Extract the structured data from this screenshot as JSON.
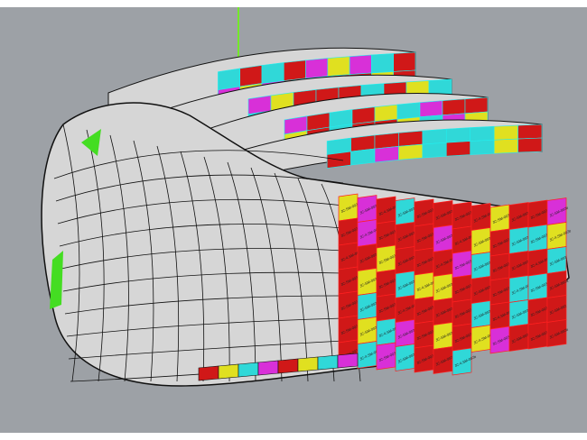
{
  "viewport": {
    "background": "#9da1a6",
    "surface_color": "#d6d6d6",
    "edge_color": "#111111",
    "axis_color": "#66ff00"
  },
  "panel_colors": [
    "#d01818",
    "#e0e020",
    "#30d8d8",
    "#d830d8",
    "#d01818",
    "#d01818"
  ],
  "panel_labels": [
    "JC-SM-002",
    "JC-SM-002b",
    "JC-4.SM-002b",
    "JC-SM-003",
    "JC-SM-002a"
  ]
}
